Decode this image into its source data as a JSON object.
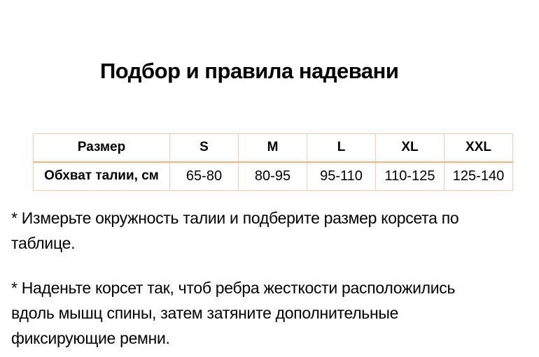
{
  "title": "Подбор и правила надевани",
  "table": {
    "header": [
      "Размер",
      "S",
      "M",
      "L",
      "XL",
      "XXL"
    ],
    "rows": [
      [
        "Обхват талии, см",
        "65-80",
        "80-95",
        "95-110",
        "110-125",
        "125-140"
      ]
    ]
  },
  "notes": [
    {
      "lines": [
        "* Измерьте окружность талии и подберите размер корсета по",
        "таблице."
      ]
    },
    {
      "lines": [
        "* Наденьте корсет так, чтоб ребра жесткости расположились",
        "вдоль мышц спины, затем затяните дополнительные",
        "фиксирующие ремни."
      ]
    }
  ],
  "colors": {
    "border_light": "#F7CBAC",
    "border_accent": "#F4B183",
    "text": "#000000",
    "background": "#FFFFFF"
  }
}
